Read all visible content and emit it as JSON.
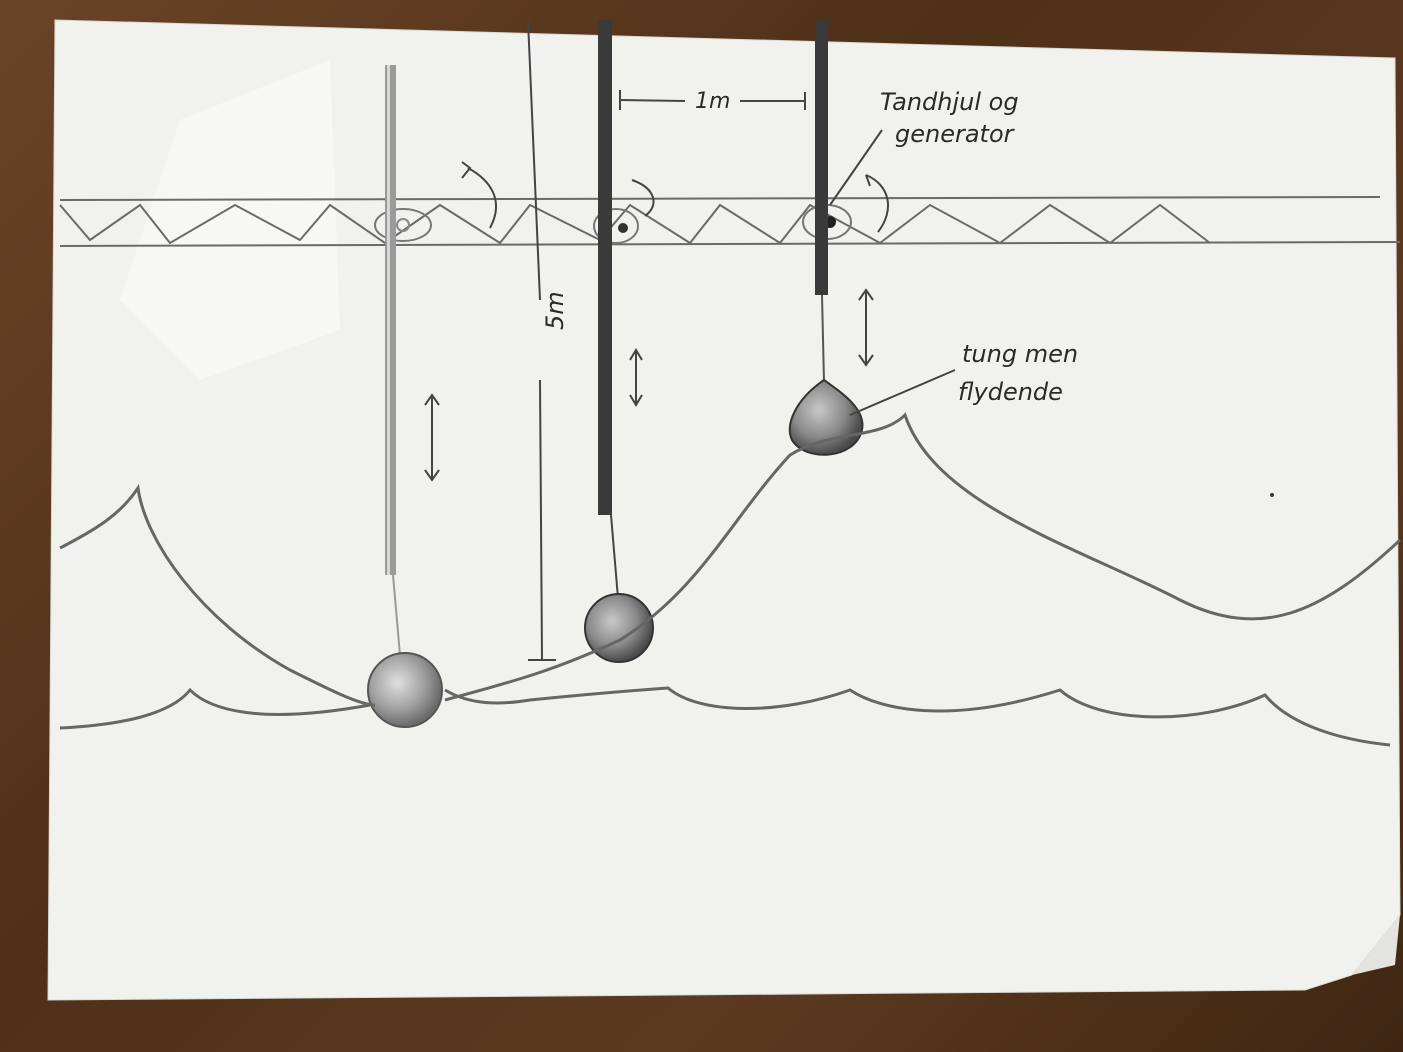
{
  "labels": {
    "spacing": "1m",
    "height": "5m",
    "gear_line1": "Tandhjul og",
    "gear_line2": "generator",
    "float_line1": "tung men",
    "float_line2": "flydende"
  },
  "colors": {
    "paper": "#f2f2f0",
    "pencil": "#555555",
    "pencil_dark": "#2e2e2e",
    "wood": "#5a3a22"
  }
}
